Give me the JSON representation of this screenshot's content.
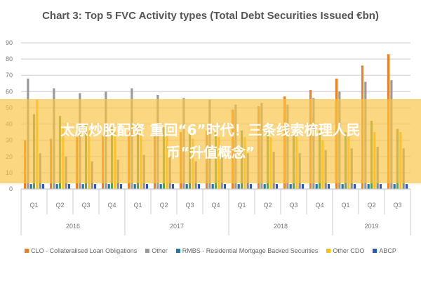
{
  "chart_data": {
    "type": "bar",
    "title": "Chart 3: Top 5 FVC Activity types (Total Debt Securities Issued €bn)",
    "ylim": [
      0,
      90
    ],
    "yticks": [
      0,
      10,
      20,
      30,
      40,
      50,
      60,
      70,
      80,
      90
    ],
    "grid": true,
    "legend_position": "bottom",
    "years": [
      {
        "label": "2016",
        "quarters": 4
      },
      {
        "label": "2017",
        "quarters": 4
      },
      {
        "label": "2018",
        "quarters": 4
      },
      {
        "label": "2019",
        "quarters": 3
      }
    ],
    "categories": [
      "Q1",
      "Q2",
      "Q3",
      "Q4",
      "Q1",
      "Q2",
      "Q3",
      "Q4",
      "Q1",
      "Q2",
      "Q3",
      "Q4",
      "Q1",
      "Q2",
      "Q3"
    ],
    "series": [
      {
        "name": "CLO - Collateralised Loan Obligations",
        "color": "#f07f1e",
        "legend": true,
        "values": [
          30,
          31,
          32,
          33,
          35,
          33,
          35,
          36,
          49,
          51,
          57,
          61,
          68,
          76,
          83
        ]
      },
      {
        "name": "Other",
        "color": "#9a9a9a",
        "legend": true,
        "values": [
          68,
          62,
          59,
          60,
          62,
          58,
          56,
          55,
          52,
          53,
          52,
          56,
          60,
          66,
          67
        ]
      },
      {
        "name": "RMBS - Residential Mortgage Backed Securities",
        "color": "#2179a8",
        "legend": true,
        "values": [
          3,
          3,
          3,
          3,
          3,
          3,
          3,
          3,
          3,
          3,
          3,
          3,
          3,
          3,
          3
        ]
      },
      {
        "color": "#6f9a45",
        "legend": false,
        "values": [
          46,
          45,
          40,
          38,
          40,
          38,
          37,
          35,
          36,
          35,
          33,
          36,
          35,
          42,
          37
        ]
      },
      {
        "name": "Other CDO",
        "color": "#fbbf10",
        "legend": true,
        "values": [
          55,
          38,
          36,
          35,
          37,
          33,
          31,
          32,
          32,
          32,
          33,
          30,
          33,
          35,
          35
        ]
      },
      {
        "color": "#8c8c8c",
        "legend": false,
        "values": [
          22,
          20,
          17,
          18,
          21,
          20,
          17,
          20,
          22,
          23,
          22,
          24,
          25,
          26,
          25
        ]
      },
      {
        "name": "ABCP",
        "color": "#2a56c2",
        "legend": true,
        "values": [
          3,
          3,
          3,
          3,
          3,
          3,
          3,
          3,
          3,
          3,
          3,
          3,
          3,
          3,
          3
        ]
      }
    ]
  },
  "banner": {
    "line1": "太原炒股配资 重回“6”时代！三条线索梳理人民",
    "line2": "币“升值概念”",
    "color": "#fac446"
  }
}
